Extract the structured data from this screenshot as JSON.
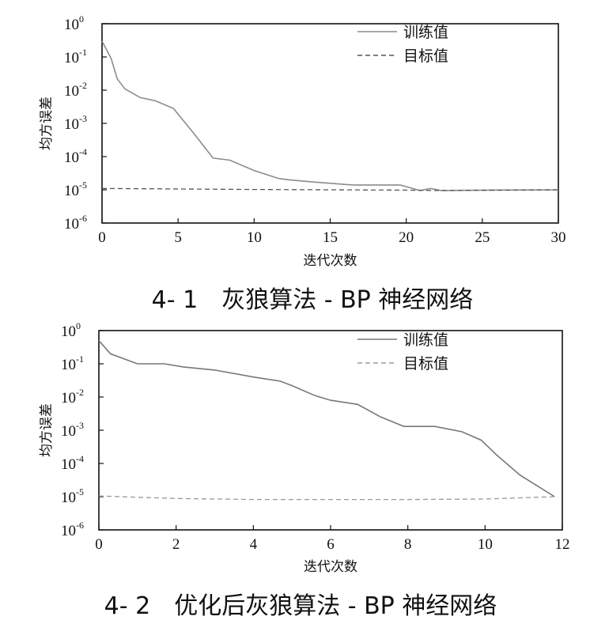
{
  "chart_data": [
    {
      "type": "line",
      "title": "4- 1　灰狼算法 - BP 神经网络",
      "xlabel": "迭代次数",
      "ylabel": "均方误差",
      "yscale": "log",
      "xlim": [
        0,
        30
      ],
      "ylim": [
        1e-06,
        1
      ],
      "xticks": [
        "0",
        "5",
        "10",
        "15",
        "20",
        "25",
        "30"
      ],
      "yticks": [
        {
          "base": "10",
          "exp": "-6"
        },
        {
          "base": "10",
          "exp": "-5"
        },
        {
          "base": "10",
          "exp": "-4"
        },
        {
          "base": "10",
          "exp": "-3"
        },
        {
          "base": "10",
          "exp": "-2"
        },
        {
          "base": "10",
          "exp": "-1"
        },
        {
          "base": "10",
          "exp": "0"
        }
      ],
      "legend_position": "top-right",
      "series": [
        {
          "name": "训练值",
          "style": "solid",
          "color": "#8c8c8c",
          "x": [
            0,
            0.6,
            1,
            1.5,
            2.5,
            3.5,
            4.7,
            6,
            7.3,
            8.4,
            10,
            11.6,
            12.3,
            14,
            16.5,
            19.6,
            20.9,
            21.6,
            22.3,
            25,
            30
          ],
          "y": [
            0.3,
            0.09,
            0.022,
            0.011,
            0.006,
            0.0048,
            0.0028,
            0.00052,
            9e-05,
            7.8e-05,
            3.8e-05,
            2.2e-05,
            2e-05,
            1.7e-05,
            1.4e-05,
            1.4e-05,
            9.5e-06,
            1.1e-05,
            9.5e-06,
            9.8e-06,
            1e-05
          ]
        },
        {
          "name": "目标值",
          "style": "dashed",
          "color": "#555555",
          "x": [
            0,
            10,
            20,
            22,
            25,
            30
          ],
          "y": [
            1.1e-05,
            1.02e-05,
            9.8e-06,
            9.5e-06,
            9.7e-06,
            1e-05
          ]
        }
      ]
    },
    {
      "type": "line",
      "title": "4- 2　优化后灰狼算法 - BP 神经网络",
      "xlabel": "迭代次数",
      "ylabel": "均方误差",
      "yscale": "log",
      "xlim": [
        0,
        12
      ],
      "ylim": [
        1e-06,
        1
      ],
      "xticks": [
        "0",
        "2",
        "4",
        "6",
        "8",
        "10",
        "12"
      ],
      "yticks": [
        {
          "base": "10",
          "exp": "-6"
        },
        {
          "base": "10",
          "exp": "-5"
        },
        {
          "base": "10",
          "exp": "-4"
        },
        {
          "base": "10",
          "exp": "-3"
        },
        {
          "base": "10",
          "exp": "-2"
        },
        {
          "base": "10",
          "exp": "-1"
        },
        {
          "base": "10",
          "exp": "0"
        }
      ],
      "legend_position": "top-right",
      "series": [
        {
          "name": "训练值",
          "style": "solid",
          "color": "#777777",
          "x": [
            0,
            0.3,
            1,
            1.7,
            2.2,
            3,
            4,
            4.7,
            5,
            5.6,
            6,
            6.7,
            7.3,
            7.9,
            8.7,
            9.4,
            9.9,
            10.3,
            10.9,
            11.8
          ],
          "y": [
            0.5,
            0.2,
            0.1,
            0.1,
            0.08,
            0.065,
            0.04,
            0.03,
            0.022,
            0.011,
            0.008,
            0.006,
            0.0025,
            0.0013,
            0.0013,
            0.0009,
            0.0005,
            0.00018,
            4.5e-05,
            1e-05
          ]
        },
        {
          "name": "目标值",
          "style": "dashed",
          "color": "#999999",
          "x": [
            0,
            2,
            4,
            6,
            8,
            10,
            11.8
          ],
          "y": [
            1.05e-05,
            8.8e-06,
            8.2e-06,
            8.2e-06,
            8.2e-06,
            8.5e-06,
            1e-05
          ]
        }
      ]
    }
  ]
}
